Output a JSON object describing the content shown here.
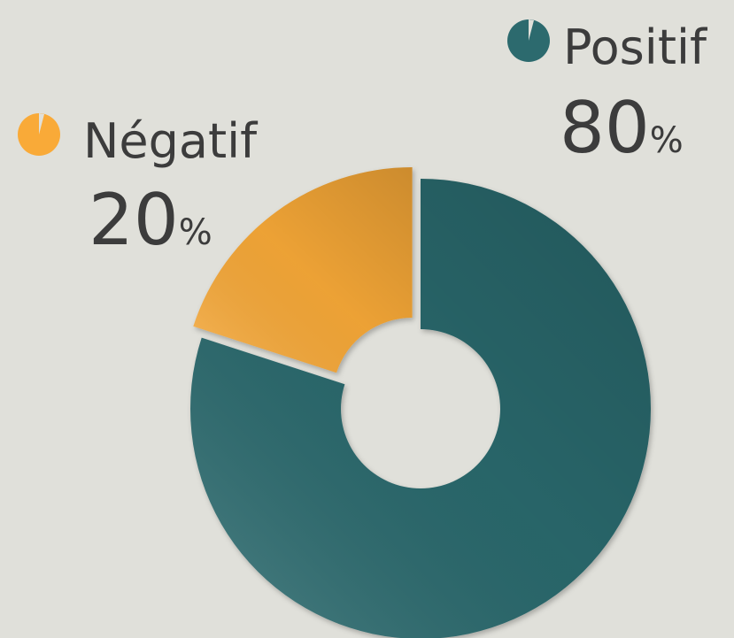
{
  "chart_data": {
    "type": "pie",
    "donut": true,
    "categories": [
      "Positif",
      "Négatif"
    ],
    "values": [
      80,
      20
    ],
    "value_labels": [
      "80%",
      "20%"
    ],
    "colors": [
      "#2c6a6e",
      "#f9aa38"
    ]
  }
}
